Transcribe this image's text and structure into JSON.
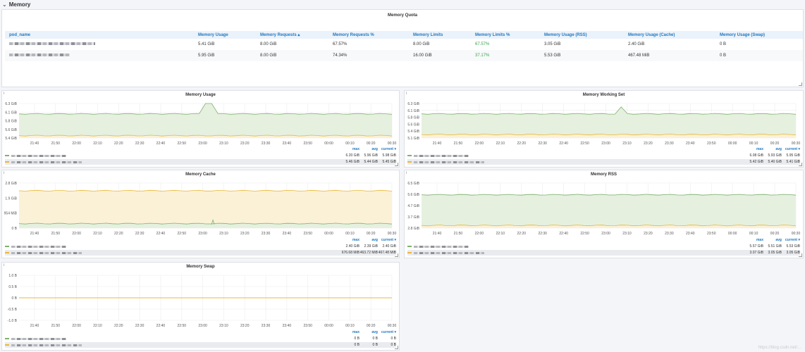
{
  "row": {
    "title": "Memory",
    "chevron": "chevron-down-icon"
  },
  "quota": {
    "title": "Memory Quota",
    "columns": [
      "pod_name",
      "Memory Usage",
      "Memory Requests ▴",
      "Memory Requests %",
      "Memory Limits",
      "Memory Limits %",
      "Memory Usage (RSS)",
      "Memory Usage (Cache)",
      "Memory Usage (Swap)"
    ],
    "rows": [
      [
        "",
        "5.41 GiB",
        "8.00 GiB",
        "67.57%",
        "8.00 GiB",
        "67.57%",
        "3.05 GiB",
        "2.40 GiB",
        "0 B"
      ],
      [
        "",
        "5.95 GiB",
        "8.00 GiB",
        "74.34%",
        "16.00 GiB",
        "37.17%",
        "5.53 GiB",
        "467.48 MiB",
        "0 B"
      ]
    ]
  },
  "x_ticks": [
    "21:40",
    "21:50",
    "22:00",
    "22:10",
    "22:20",
    "22:30",
    "22:40",
    "22:50",
    "23:00",
    "23:10",
    "23:20",
    "23:30",
    "23:40",
    "23:50",
    "00:00",
    "00:10",
    "00:20",
    "00:30"
  ],
  "legend_cols": [
    "max",
    "avg",
    "current ▾"
  ],
  "colors": {
    "green": "#7eb26d",
    "yellow": "#eab839",
    "green_fill": "#e5f0df",
    "yellow_fill": "#fbf1d7"
  },
  "panels": {
    "usage": {
      "title": "Memory Usage",
      "y_ticks": [
        "6.3 GiB",
        "6.1 GiB",
        "5.8 GiB",
        "5.6 GiB",
        "5.4 GiB"
      ],
      "legend": [
        [
          "6.20 GiB",
          "5.96 GiB",
          "5.98 GiB"
        ],
        [
          "5.46 GiB",
          "5.44 GiB",
          "5.45 GiB"
        ]
      ]
    },
    "working": {
      "title": "Memory Working Set",
      "y_ticks": [
        "6.3 GiB",
        "6.1 GiB",
        "5.8 GiB",
        "5.6 GiB",
        "5.4 GiB",
        "5.1 GiB"
      ],
      "legend": [
        [
          "6.08 GiB",
          "5.93 GiB",
          "5.95 GiB"
        ],
        [
          "5.42 GiB",
          "5.40 GiB",
          "5.41 GiB"
        ]
      ]
    },
    "cache": {
      "title": "Memory Cache",
      "y_ticks": [
        "2.8 GiB",
        "1.9 GiB",
        "954 MiB",
        "0 B"
      ],
      "legend": [
        [
          "2.40 GiB",
          "2.39 GiB",
          "2.40 GiB"
        ],
        [
          "676.68 MiB",
          "463.72 MiB",
          "467.48 MiB"
        ]
      ]
    },
    "rss": {
      "title": "Memory RSS",
      "y_ticks": [
        "6.5 GiB",
        "5.6 GiB",
        "4.7 GiB",
        "3.7 GiB",
        "2.8 GiB"
      ],
      "legend": [
        [
          "5.57 GiB",
          "5.51 GiB",
          "5.53 GiB"
        ],
        [
          "3.07 GiB",
          "3.05 GiB",
          "3.05 GiB"
        ]
      ]
    },
    "swap": {
      "title": "Memory Swap",
      "y_ticks": [
        "1.0 B",
        "0.5 B",
        "0 B",
        "-0.5 B",
        "-1.0 B"
      ],
      "legend": [
        [
          "0 B",
          "0 B",
          "0 B"
        ],
        [
          "0 B",
          "0 B",
          "0 B"
        ]
      ]
    }
  },
  "watermark": "https://blog.csdn.net/..."
}
